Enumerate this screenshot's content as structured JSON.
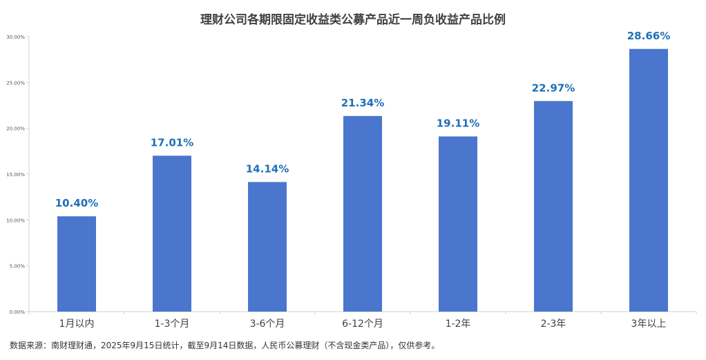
{
  "chart_data": {
    "type": "bar",
    "title": "理财公司各期限固定收益类公募产品近一周负收益产品比例",
    "categories": [
      "1月以内",
      "1-3个月",
      "3-6个月",
      "6-12个月",
      "1-2年",
      "2-3年",
      "3年以上"
    ],
    "values": [
      10.4,
      17.01,
      14.14,
      21.34,
      19.11,
      22.97,
      28.66
    ],
    "data_labels": [
      "10.40%",
      "17.01%",
      "14.14%",
      "21.34%",
      "19.11%",
      "22.97%",
      "28.66%"
    ],
    "yticks": [
      "0.00%",
      "5.00%",
      "10.00%",
      "15.00%",
      "20.00%",
      "25.00%",
      "30.00%"
    ],
    "ylim": [
      0,
      30
    ],
    "xlabel": "",
    "ylabel": "",
    "grid": false,
    "colors": {
      "bar": "#4A76CE",
      "label": "#1F6FB8",
      "axis": "#D0D0D0",
      "tick_text": "#404040"
    }
  },
  "source_note": "数据来源：南财理财通，2025年9月15日统计，截至9月14日数据，人民币公募理财（不含现金类产品），仅供参考。"
}
